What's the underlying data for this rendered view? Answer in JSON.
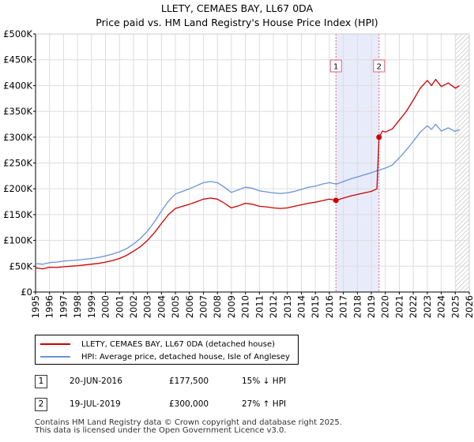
{
  "title": "LLETY, CEMAES BAY, LL67 0DA",
  "subtitle": "Price paid vs. HM Land Registry's House Price Index (HPI)",
  "chart_data": {
    "type": "line",
    "xlim": [
      1995,
      2026
    ],
    "ylim": [
      0,
      500000
    ],
    "x_ticks": [
      "1995",
      "1996",
      "1997",
      "1998",
      "1999",
      "2000",
      "2001",
      "2002",
      "2003",
      "2004",
      "2005",
      "2006",
      "2007",
      "2008",
      "2009",
      "2010",
      "2011",
      "2012",
      "2013",
      "2014",
      "2015",
      "2016",
      "2017",
      "2018",
      "2019",
      "2020",
      "2021",
      "2022",
      "2023",
      "2024",
      "2025",
      "2026"
    ],
    "y_ticks": [
      {
        "value": 0,
        "label": "£0"
      },
      {
        "value": 50000,
        "label": "£50K"
      },
      {
        "value": 100000,
        "label": "£100K"
      },
      {
        "value": 150000,
        "label": "£150K"
      },
      {
        "value": 200000,
        "label": "£200K"
      },
      {
        "value": 250000,
        "label": "£250K"
      },
      {
        "value": 300000,
        "label": "£300K"
      },
      {
        "value": 350000,
        "label": "£350K"
      },
      {
        "value": 400000,
        "label": "£400K"
      },
      {
        "value": 450000,
        "label": "£450K"
      },
      {
        "value": 500000,
        "label": "£500K"
      }
    ],
    "shaded_region": [
      2016.47,
      2019.55
    ],
    "forecast_start": 2025.0,
    "series": [
      {
        "name": "LLETY, CEMAES BAY, LL67 0DA (detached house)",
        "color": "#cc0000",
        "points": [
          [
            1995.0,
            47000
          ],
          [
            1995.5,
            45000
          ],
          [
            1996.0,
            48000
          ],
          [
            1996.5,
            47500
          ],
          [
            1997.0,
            49000
          ],
          [
            1997.5,
            50000
          ],
          [
            1998.0,
            51000
          ],
          [
            1998.5,
            52500
          ],
          [
            1999.0,
            54000
          ],
          [
            1999.5,
            55500
          ],
          [
            2000.0,
            58000
          ],
          [
            2000.5,
            61000
          ],
          [
            2001.0,
            65000
          ],
          [
            2001.5,
            71000
          ],
          [
            2002.0,
            79000
          ],
          [
            2002.5,
            88000
          ],
          [
            2003.0,
            100000
          ],
          [
            2003.5,
            115000
          ],
          [
            2004.0,
            133000
          ],
          [
            2004.5,
            150000
          ],
          [
            2005.0,
            162000
          ],
          [
            2005.5,
            166000
          ],
          [
            2006.0,
            170000
          ],
          [
            2006.5,
            175000
          ],
          [
            2007.0,
            180000
          ],
          [
            2007.5,
            182000
          ],
          [
            2008.0,
            180000
          ],
          [
            2008.5,
            172000
          ],
          [
            2009.0,
            163000
          ],
          [
            2009.5,
            167000
          ],
          [
            2010.0,
            172000
          ],
          [
            2010.5,
            170000
          ],
          [
            2011.0,
            166000
          ],
          [
            2011.5,
            165000
          ],
          [
            2012.0,
            163000
          ],
          [
            2012.5,
            162000
          ],
          [
            2013.0,
            163000
          ],
          [
            2013.5,
            166000
          ],
          [
            2014.0,
            169000
          ],
          [
            2014.5,
            172000
          ],
          [
            2015.0,
            174000
          ],
          [
            2015.5,
            177000
          ],
          [
            2016.0,
            180000
          ],
          [
            2016.47,
            177500
          ],
          [
            2017.0,
            182000
          ],
          [
            2017.5,
            186000
          ],
          [
            2018.0,
            189000
          ],
          [
            2018.5,
            192000
          ],
          [
            2019.0,
            195000
          ],
          [
            2019.4,
            200000
          ],
          [
            2019.55,
            300000
          ],
          [
            2019.8,
            312000
          ],
          [
            2020.0,
            310000
          ],
          [
            2020.5,
            316000
          ],
          [
            2021.0,
            333000
          ],
          [
            2021.5,
            350000
          ],
          [
            2022.0,
            372000
          ],
          [
            2022.5,
            395000
          ],
          [
            2023.0,
            410000
          ],
          [
            2023.3,
            400000
          ],
          [
            2023.6,
            412000
          ],
          [
            2024.0,
            398000
          ],
          [
            2024.5,
            405000
          ],
          [
            2025.0,
            395000
          ],
          [
            2025.3,
            400000
          ]
        ]
      },
      {
        "name": "HPI: Average price, detached house, Isle of Anglesey",
        "color": "#6b93d6",
        "points": [
          [
            1995.0,
            55000
          ],
          [
            1995.5,
            54000
          ],
          [
            1996.0,
            57000
          ],
          [
            1996.5,
            58000
          ],
          [
            1997.0,
            60000
          ],
          [
            1997.5,
            61000
          ],
          [
            1998.0,
            62000
          ],
          [
            1998.5,
            63500
          ],
          [
            1999.0,
            65000
          ],
          [
            1999.5,
            67000
          ],
          [
            2000.0,
            70000
          ],
          [
            2000.5,
            73500
          ],
          [
            2001.0,
            78000
          ],
          [
            2001.5,
            84000
          ],
          [
            2002.0,
            93000
          ],
          [
            2002.5,
            104000
          ],
          [
            2003.0,
            118000
          ],
          [
            2003.5,
            136000
          ],
          [
            2004.0,
            157000
          ],
          [
            2004.5,
            176000
          ],
          [
            2005.0,
            190000
          ],
          [
            2005.5,
            195000
          ],
          [
            2006.0,
            200000
          ],
          [
            2006.5,
            206000
          ],
          [
            2007.0,
            212000
          ],
          [
            2007.5,
            214000
          ],
          [
            2008.0,
            212000
          ],
          [
            2008.5,
            203000
          ],
          [
            2009.0,
            193000
          ],
          [
            2009.5,
            198000
          ],
          [
            2010.0,
            203000
          ],
          [
            2010.5,
            201000
          ],
          [
            2011.0,
            196000
          ],
          [
            2011.5,
            194000
          ],
          [
            2012.0,
            192000
          ],
          [
            2012.5,
            191000
          ],
          [
            2013.0,
            192000
          ],
          [
            2013.5,
            195000
          ],
          [
            2014.0,
            199000
          ],
          [
            2014.5,
            203000
          ],
          [
            2015.0,
            205000
          ],
          [
            2015.5,
            209000
          ],
          [
            2016.0,
            212000
          ],
          [
            2016.5,
            209000
          ],
          [
            2017.0,
            214000
          ],
          [
            2017.5,
            219000
          ],
          [
            2018.0,
            223000
          ],
          [
            2018.5,
            227000
          ],
          [
            2019.0,
            231000
          ],
          [
            2019.5,
            236000
          ],
          [
            2020.0,
            240000
          ],
          [
            2020.5,
            246000
          ],
          [
            2021.0,
            260000
          ],
          [
            2021.5,
            275000
          ],
          [
            2022.0,
            292000
          ],
          [
            2022.5,
            310000
          ],
          [
            2023.0,
            322000
          ],
          [
            2023.3,
            315000
          ],
          [
            2023.6,
            325000
          ],
          [
            2024.0,
            312000
          ],
          [
            2024.5,
            318000
          ],
          [
            2025.0,
            311000
          ],
          [
            2025.3,
            315000
          ]
        ]
      }
    ],
    "markers": [
      {
        "label": "1",
        "x": 2016.47,
        "y": 177500
      },
      {
        "label": "2",
        "x": 2019.55,
        "y": 300000
      }
    ]
  },
  "legend": {
    "item1": "LLETY, CEMAES BAY, LL67 0DA (detached house)",
    "item2": "HPI: Average price, detached house, Isle of Anglesey"
  },
  "transactions": [
    {
      "num": "1",
      "date": "20-JUN-2016",
      "price": "£177,500",
      "hpi": "15% ↓ HPI"
    },
    {
      "num": "2",
      "date": "19-JUL-2019",
      "price": "£300,000",
      "hpi": "27% ↑ HPI"
    }
  ],
  "footer": {
    "line1": "Contains HM Land Registry data © Crown copyright and database right 2025.",
    "line2": "This data is licensed under the Open Government Licence v3.0."
  }
}
